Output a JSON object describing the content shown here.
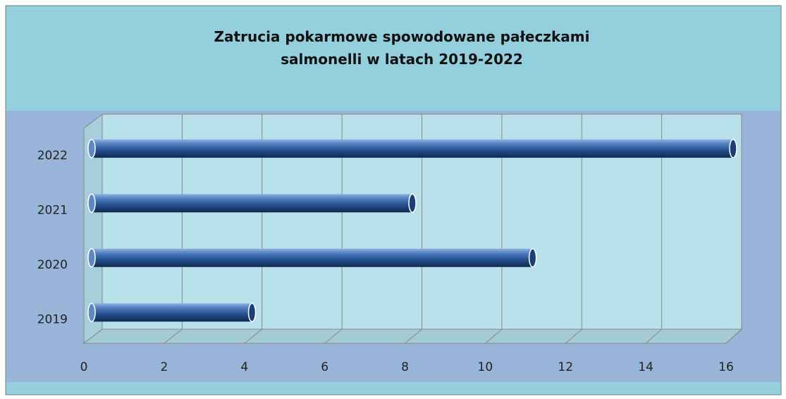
{
  "chart_data": {
    "type": "bar",
    "orientation": "horizontal",
    "title": "Zatrucia pokarmowe spowodowane pałeczkami salmonelli w latach 2019-2022",
    "categories": [
      "2019",
      "2020",
      "2021",
      "2022"
    ],
    "values": [
      4,
      11,
      8,
      16
    ],
    "color": "#2a5a9c",
    "xlim": [
      0,
      16
    ],
    "xticks": [
      0,
      2,
      4,
      6,
      8,
      10,
      12,
      14,
      16
    ],
    "grid": true
  }
}
